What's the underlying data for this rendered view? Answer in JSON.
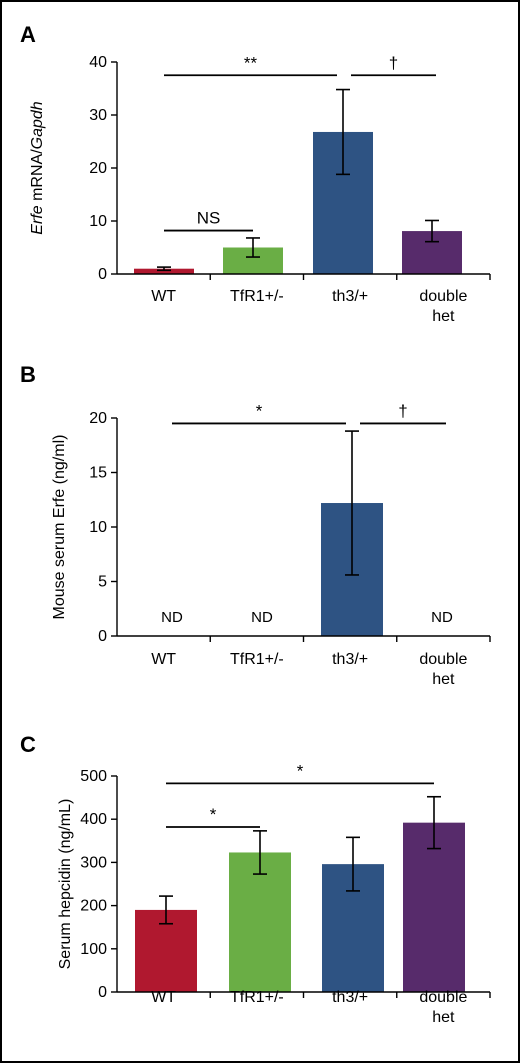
{
  "chart_data": [
    {
      "panel": "A",
      "type": "bar",
      "ylabel_parts": [
        {
          "text": "Erfe",
          "italic": true
        },
        {
          "text": " mRNA/",
          "italic": false
        },
        {
          "text": "Gapdh",
          "italic": true
        }
      ],
      "ylim": [
        0,
        40
      ],
      "yticks": [
        0,
        10,
        20,
        30,
        40
      ],
      "categories": [
        [
          "WT"
        ],
        [
          "TfR1+/-"
        ],
        [
          "th3/+"
        ],
        [
          "double",
          "het"
        ]
      ],
      "values": [
        1.0,
        5.0,
        26.8,
        8.1
      ],
      "errors": [
        0.3,
        1.8,
        8.0,
        2.0
      ],
      "colors": [
        "#b0182f",
        "#6aae45",
        "#2e5383",
        "#572b6b"
      ],
      "nd": [],
      "significance": [
        {
          "from": 0,
          "to": 2,
          "label": "**",
          "y": 37.5
        },
        {
          "from": 2,
          "to": 3,
          "label": "†",
          "y": 37.5
        },
        {
          "from": 0,
          "to": 1,
          "label": "NS",
          "y": 8.2
        }
      ]
    },
    {
      "panel": "B",
      "type": "bar",
      "ylabel_parts": [
        {
          "text": "Mouse serum Erfe (ng/ml)",
          "italic": false
        }
      ],
      "ylim": [
        0,
        20
      ],
      "yticks": [
        0,
        5,
        10,
        15,
        20
      ],
      "categories": [
        [
          "WT"
        ],
        [
          "TfR1+/-"
        ],
        [
          "th3/+"
        ],
        [
          "double",
          "het"
        ]
      ],
      "values": [
        0,
        0,
        12.2,
        0
      ],
      "errors": [
        0,
        0,
        6.6,
        0
      ],
      "colors": [
        "#b0182f",
        "#6aae45",
        "#2e5383",
        "#572b6b"
      ],
      "nd": [
        "ND",
        "ND",
        "",
        "ND"
      ],
      "significance": [
        {
          "from": 0,
          "to": 2,
          "label": "*",
          "y": 19.5
        },
        {
          "from": 2,
          "to": 3,
          "label": "†",
          "y": 19.5
        }
      ]
    },
    {
      "panel": "C",
      "type": "bar",
      "ylabel_parts": [
        {
          "text": "Serum hepcidin (ng/mL)",
          "italic": false
        }
      ],
      "ylim": [
        0,
        500
      ],
      "yticks": [
        0,
        100,
        200,
        300,
        400,
        500
      ],
      "categories": [
        [
          "WT"
        ],
        [
          "TfR1+/-"
        ],
        [
          "th3/+"
        ],
        [
          "double",
          "het"
        ]
      ],
      "values": [
        190,
        323,
        296,
        392
      ],
      "errors": [
        32,
        50,
        62,
        60
      ],
      "colors": [
        "#b0182f",
        "#6aae45",
        "#2e5383",
        "#572b6b"
      ],
      "nd": [],
      "significance": [
        {
          "from": 0,
          "to": 3,
          "label": "*",
          "y": 483
        },
        {
          "from": 0,
          "to": 1,
          "label": "*",
          "y": 382
        }
      ]
    }
  ]
}
